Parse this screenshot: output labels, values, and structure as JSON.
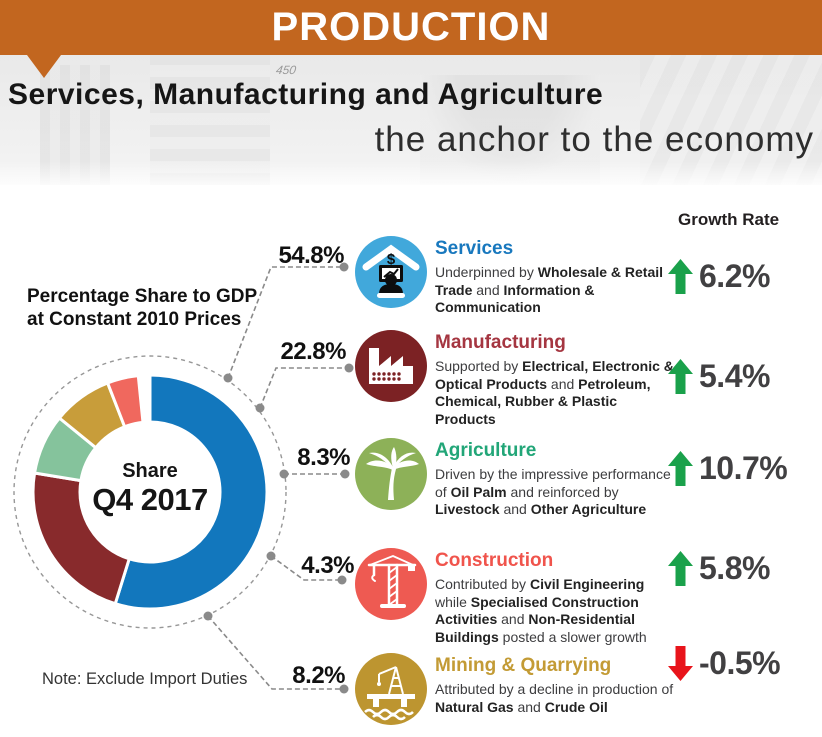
{
  "header": {
    "title": "PRODUCTION"
  },
  "hero": {
    "headline": "Services, Manufacturing and Agriculture",
    "tagline": "the anchor to the economy",
    "photo_text": "450"
  },
  "share_caption": {
    "line1": "Percentage Share to GDP",
    "line2": "at Constant 2010 Prices"
  },
  "donut_center": {
    "line1": "Share",
    "line2": "Q4 2017"
  },
  "note": "Note: Exclude Import Duties",
  "growth_header": "Growth Rate",
  "sectors": [
    {
      "id": "services",
      "title": "Services",
      "title_color": "#1878be",
      "icon_color": "#41a8db",
      "icon": "services-icon",
      "share": "54.8%",
      "growth": "6.2%",
      "growth_direction": "up",
      "body": [
        {
          "t": "Underpinned by ",
          "b": false
        },
        {
          "t": "Wholesale & Retail Trade",
          "b": true
        },
        {
          "t": " and ",
          "b": false
        },
        {
          "t": "Information & Communication",
          "b": true
        }
      ]
    },
    {
      "id": "manufacturing",
      "title": "Manufacturing",
      "title_color": "#a53641",
      "icon_color": "#7c2224",
      "icon": "factory-icon",
      "share": "22.8%",
      "growth": "5.4%",
      "growth_direction": "up",
      "body": [
        {
          "t": "Supported by ",
          "b": false
        },
        {
          "t": "Electrical, Electronic & Optical Products",
          "b": true
        },
        {
          "t": " and ",
          "b": false
        },
        {
          "t": "Petroleum, Chemical, Rubber & Plastic Products",
          "b": true
        }
      ]
    },
    {
      "id": "agriculture",
      "title": "Agriculture",
      "title_color": "#22a678",
      "icon_color": "#8db158",
      "icon": "palm-tree-icon",
      "share": "8.3%",
      "growth": "10.7%",
      "growth_direction": "up",
      "body": [
        {
          "t": "Driven by the impressive performance of ",
          "b": false
        },
        {
          "t": "Oil Palm",
          "b": true
        },
        {
          "t": " and reinforced by ",
          "b": false
        },
        {
          "t": "Livestock",
          "b": true
        },
        {
          "t": " and ",
          "b": false
        },
        {
          "t": "Other Agriculture",
          "b": true
        }
      ]
    },
    {
      "id": "construction",
      "title": "Construction",
      "title_color": "#f0544c",
      "icon_color": "#ee5a52",
      "icon": "crane-icon",
      "share": "4.3%",
      "growth": "5.8%",
      "growth_direction": "up",
      "body": [
        {
          "t": "Contributed by ",
          "b": false
        },
        {
          "t": "Civil Engineering",
          "b": true
        },
        {
          "t": " while ",
          "b": false
        },
        {
          "t": "Specialised Construction Activities",
          "b": true
        },
        {
          "t": " and ",
          "b": false
        },
        {
          "t": "Non-Residential Buildings",
          "b": true
        },
        {
          "t": " posted a slower growth",
          "b": false
        }
      ]
    },
    {
      "id": "mining",
      "title": "Mining & Quarrying",
      "title_color": "#c39b35",
      "icon_color": "#bd9530",
      "icon": "oil-rig-icon",
      "share": "8.2%",
      "growth": "-0.5%",
      "growth_direction": "down",
      "body": [
        {
          "t": "Attributed by a decline in production of ",
          "b": false
        },
        {
          "t": "Natural Gas",
          "b": true
        },
        {
          "t": " and ",
          "b": false
        },
        {
          "t": "Crude Oil",
          "b": true
        }
      ]
    }
  ],
  "colors": {
    "banner": "#c2661f",
    "growth_up": "#1aa14b",
    "growth_down": "#e8141b",
    "growth_value": "#414042",
    "leader_line": "#8a8a8a"
  },
  "chart_data": {
    "type": "pie",
    "title": "Percentage Share to GDP at Constant 2010 Prices",
    "center_label": "Share Q4 2017",
    "unit": "%",
    "note": "Note: Exclude Import Duties",
    "legend_position": "right",
    "slices": [
      {
        "label": "Services",
        "value": 54.8,
        "color": "#1277bd"
      },
      {
        "label": "Manufacturing",
        "value": 22.8,
        "color": "#882a2c"
      },
      {
        "label": "Agriculture",
        "value": 8.3,
        "color": "#85c39c"
      },
      {
        "label": "Mining & Quarrying",
        "value": 8.2,
        "color": "#c89d3a"
      },
      {
        "label": "Construction",
        "value": 4.3,
        "color": "#f0685e"
      }
    ],
    "growth_rate_series": {
      "name": "Growth Rate",
      "unit": "%",
      "values": [
        {
          "label": "Services",
          "value": 6.2
        },
        {
          "label": "Manufacturing",
          "value": 5.4
        },
        {
          "label": "Agriculture",
          "value": 10.7
        },
        {
          "label": "Construction",
          "value": 5.8
        },
        {
          "label": "Mining & Quarrying",
          "value": -0.5
        }
      ]
    }
  }
}
